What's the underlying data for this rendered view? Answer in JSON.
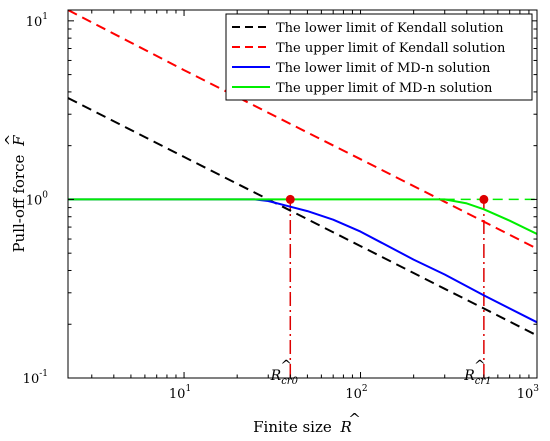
{
  "chart_data": {
    "type": "line",
    "title": "",
    "xlabel": "Finite size",
    "xlabel_symbol": "R",
    "xlabel_hat": "^",
    "ylabel": "Pull-off force",
    "ylabel_symbol": "F",
    "ylabel_hat": "^",
    "xscale": "log",
    "yscale": "log",
    "xlim": [
      2.2,
      1000
    ],
    "ylim": [
      0.1,
      11.5
    ],
    "grid": false,
    "legend_position": "top-right",
    "x_ticks": [
      {
        "value": 10,
        "base": "10",
        "exp": "1"
      },
      {
        "value": 100,
        "base": "10",
        "exp": "2"
      },
      {
        "value": 1000,
        "base": "10",
        "exp": "3"
      }
    ],
    "y_ticks": [
      {
        "value": 0.1,
        "base": "10",
        "exp": "-1"
      },
      {
        "value": 1,
        "base": "10",
        "exp": "0"
      },
      {
        "value": 10,
        "base": "10",
        "exp": "1"
      }
    ],
    "series": [
      {
        "name": "The lower limit of Kendall solution",
        "color": "#000000",
        "dash": "dashed",
        "x": [
          2.2,
          10,
          50,
          100,
          200,
          300,
          500,
          1000
        ],
        "y": [
          3.7,
          1.73,
          0.775,
          0.548,
          0.387,
          0.316,
          0.245,
          0.173
        ]
      },
      {
        "name": "The upper limit of Kendall solution",
        "color": "#ff0000",
        "dash": "dashed",
        "x": [
          2.2,
          10,
          50,
          100,
          300,
          500,
          1000
        ],
        "y": [
          11.5,
          5.3,
          2.37,
          1.68,
          0.97,
          0.75,
          0.53
        ]
      },
      {
        "name": "The lower limit of MD-n solution",
        "color": "#0000ff",
        "dash": "solid",
        "x": [
          2.2,
          25,
          30,
          40,
          50,
          70,
          100,
          200,
          300,
          500,
          1000
        ],
        "y": [
          1.0,
          1.0,
          0.98,
          0.91,
          0.86,
          0.77,
          0.66,
          0.46,
          0.38,
          0.29,
          0.205
        ]
      },
      {
        "name": "The upper limit of MD-n solution",
        "color": "#00ee00",
        "dash": "solid",
        "x": [
          2.2,
          300,
          400,
          500,
          700,
          1000
        ],
        "y": [
          1.0,
          1.0,
          0.95,
          0.88,
          0.76,
          0.64
        ]
      }
    ],
    "reference_lines": [
      {
        "kind": "horizontal",
        "color": "#00ee00",
        "dash": "dashed",
        "y": 1.0,
        "x_from": 300,
        "x_to": 1000
      },
      {
        "kind": "vertical",
        "color": "#dd0000",
        "dash": "dashdot",
        "x": 40,
        "y_from": 0.1,
        "y_to": 1.0
      },
      {
        "kind": "vertical",
        "color": "#dd0000",
        "dash": "dashdot",
        "x": 500,
        "y_from": 0.1,
        "y_to": 1.0
      }
    ],
    "points": [
      {
        "x": 40,
        "y": 1.0,
        "color": "#dd0000"
      },
      {
        "x": 500,
        "y": 1.0,
        "color": "#dd0000"
      }
    ],
    "annotations": [
      {
        "label": "R",
        "hat": "^",
        "subscript": "cr0",
        "x": 40
      },
      {
        "label": "R",
        "hat": "^",
        "subscript": "cr1",
        "x": 500
      }
    ]
  }
}
